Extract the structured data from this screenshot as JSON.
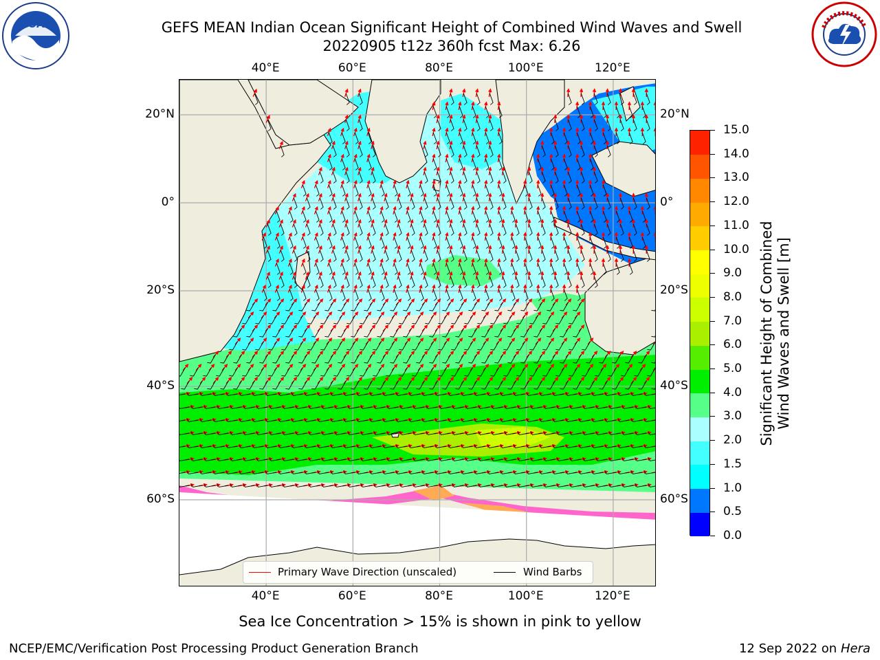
{
  "header": {
    "title_line1": "GEFS MEAN Indian Ocean Significant Height of Combined Wind Waves and Swell",
    "title_line2": "20220905 t12z 360h fcst   Max: 6.26"
  },
  "logos": {
    "left": {
      "icon": "noaa-logo-icon",
      "text": "NOAA"
    },
    "right": {
      "icon": "nws-logo-icon",
      "text": "NATIONAL WEATHER SERVICE"
    }
  },
  "map": {
    "lon_range": [
      20,
      130
    ],
    "lat_range": [
      -75,
      27
    ],
    "lon_ticks": [
      "40°E",
      "60°E",
      "80°E",
      "100°E",
      "120°E"
    ],
    "lat_ticks": [
      "20°N",
      "0°",
      "20°S",
      "40°S",
      "60°S"
    ],
    "land_color": "#efedde",
    "ice_colors": [
      "#ff66cc",
      "#ffaa55",
      "#ffff66"
    ]
  },
  "colorbar": {
    "label": "Significant Height of Combined Wind Waves and Swell [m]",
    "label_line1": "Significant Height of Combined",
    "label_line2": "Wind Waves and Swell [m]",
    "ticks": [
      "0.0",
      "0.5",
      "1.0",
      "1.5",
      "2.0",
      "3.0",
      "4.0",
      "5.0",
      "6.0",
      "7.0",
      "8.0",
      "9.0",
      "10.0",
      "11.0",
      "12.0",
      "13.0",
      "14.0",
      "15.0"
    ],
    "colors": [
      "#0000ff",
      "#0077ff",
      "#00ffff",
      "#44ffff",
      "#aaffff",
      "#55ff88",
      "#00ee00",
      "#55ee00",
      "#aaee00",
      "#ccff00",
      "#eeff00",
      "#ffff00",
      "#ffcc00",
      "#ffaa00",
      "#ff8800",
      "#ff5500",
      "#ff2200"
    ]
  },
  "legend": {
    "wave_direction": "Primary Wave Direction (unscaled)",
    "wind_barbs": "Wind Barbs",
    "wave_color": "#ff0000",
    "barb_color": "#000000"
  },
  "note": "Sea Ice Concentration > 15% is shown in pink to yellow",
  "footer": {
    "left": "NCEP/EMC/Verification Post Processing Product Generation Branch",
    "right_prefix": "12 Sep 2022 on",
    "right_host": "Hera"
  }
}
